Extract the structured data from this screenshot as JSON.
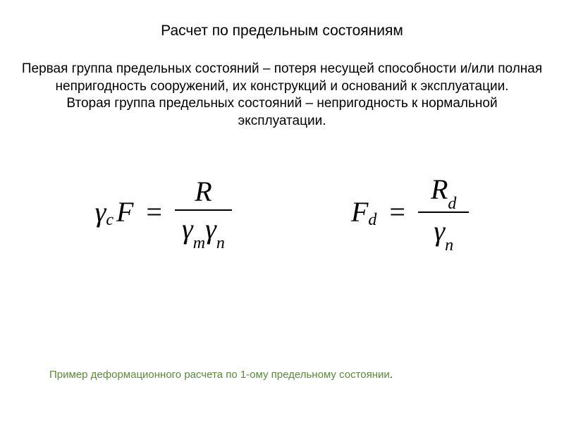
{
  "title": "Расчет по предельным состояниям",
  "description": "Первая группа предельных состояний – потеря несущей способности и/или полная непригодность сооружений, их конструкций и оснований к эксплуатации.<br>Вторая группа предельных состояний – непригодность к нормальной эксплуатации.",
  "formula1": {
    "lhs_gamma_sub": "c",
    "lhs_var": "F",
    "eq": "=",
    "num": "R",
    "den_g1_sub": "m",
    "den_g2_sub": "n"
  },
  "formula2": {
    "lhs_var": "F",
    "lhs_sub": "d",
    "eq": "=",
    "num_var": "R",
    "num_sub": "d",
    "den_g_sub": "n"
  },
  "example_link": "Пример деформационного расчета по 1-ому предельному состоянии",
  "example_dot": ".",
  "colors": {
    "background": "#ffffff",
    "text": "#000000",
    "link": "#5a8a3a",
    "formula_line": "#000000"
  },
  "typography": {
    "title_fontsize": 21,
    "body_fontsize": 19,
    "formula_fontsize": 40,
    "link_fontsize": 15,
    "body_font": "Arial",
    "formula_font": "Times New Roman"
  }
}
